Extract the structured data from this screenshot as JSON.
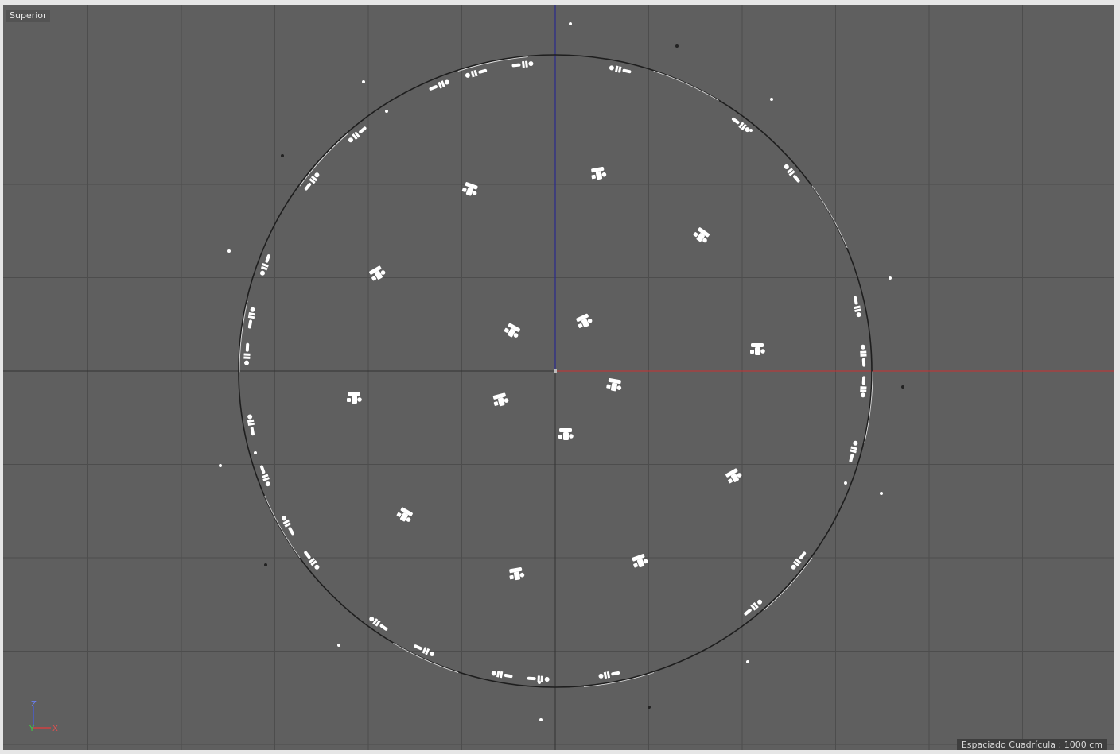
{
  "viewport": {
    "view_name": "Superior",
    "grid_spacing_label": "Espaciado Cuadrícula : 1000 cm",
    "axis_gizmo": {
      "vertical_label": "Z",
      "depth_label": "Y",
      "horizontal_label": "X"
    },
    "colors": {
      "background": "#5f5f5f",
      "grid_line": "#4d4d4d",
      "x_axis": "#c83232",
      "z_axis": "#2a2a8c",
      "objects": "#ffffff"
    }
  }
}
